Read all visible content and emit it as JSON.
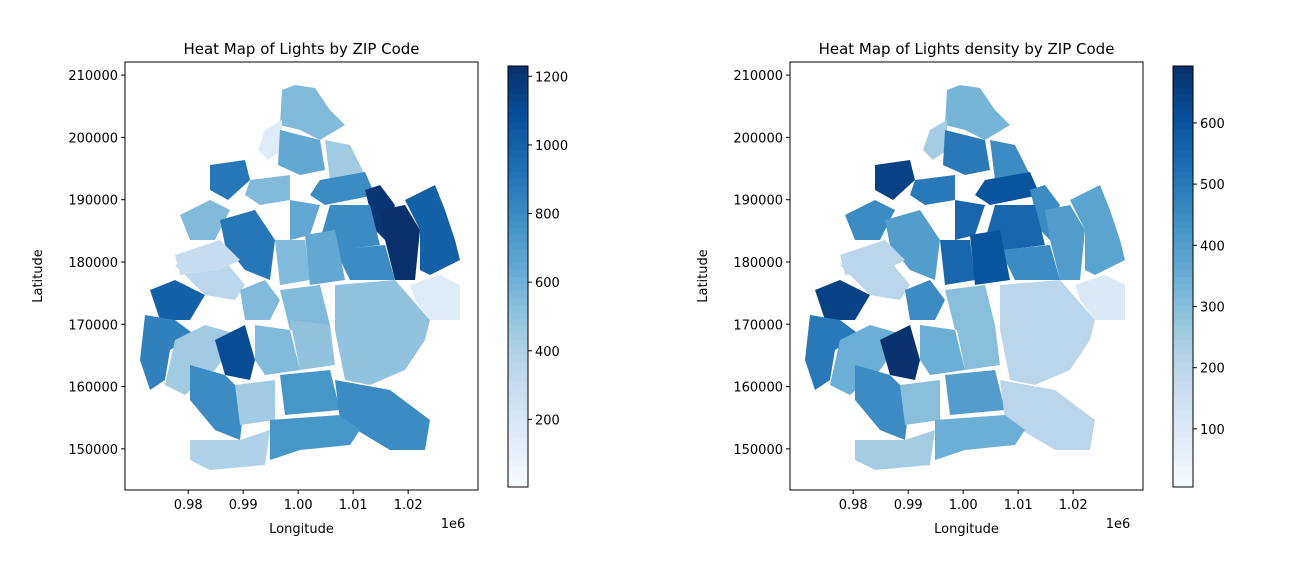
{
  "chart_data": [
    {
      "type": "choropleth",
      "title": "Heat Map of Lights by ZIP Code",
      "xlabel": "Longitude",
      "ylabel": "Latitude",
      "x_offset_label": "1e6",
      "xlim": [
        968500,
        1032700
      ],
      "ylim": [
        143400,
        212100
      ],
      "xticks": [
        {
          "value": 980000,
          "label": "0.98"
        },
        {
          "value": 990000,
          "label": "0.99"
        },
        {
          "value": 1000000,
          "label": "1.00"
        },
        {
          "value": 1010000,
          "label": "1.01"
        },
        {
          "value": 1020000,
          "label": "1.02"
        }
      ],
      "yticks": [
        150000,
        160000,
        170000,
        180000,
        190000,
        200000,
        210000
      ],
      "clim": [
        3,
        1230
      ],
      "cbar_ticks": [
        200,
        400,
        600,
        800,
        1000,
        1200
      ],
      "cmap": [
        "#f7fbff",
        "#deebf7",
        "#c6dbef",
        "#9ecae1",
        "#6baed6",
        "#4292c6",
        "#2171b5",
        "#08519c",
        "#08306b"
      ],
      "values": [
        550,
        150,
        650,
        450,
        800,
        1200,
        1230,
        1000,
        150,
        900,
        550,
        650,
        800,
        800,
        550,
        900,
        550,
        650,
        1000,
        350,
        550,
        550,
        500,
        850,
        450,
        1100,
        550,
        500,
        800,
        450,
        750,
        800,
        400,
        750,
        300
      ]
    },
    {
      "type": "choropleth",
      "title": "Heat Map of Lights density by ZIP Code",
      "xlabel": "Longitude",
      "ylabel": "Latitude",
      "x_offset_label": "1e6",
      "xlim": [
        968500,
        1032700
      ],
      "ylim": [
        143400,
        212100
      ],
      "xticks": [
        {
          "value": 980000,
          "label": "0.98"
        },
        {
          "value": 990000,
          "label": "0.99"
        },
        {
          "value": 1000000,
          "label": "1.00"
        },
        {
          "value": 1010000,
          "label": "1.01"
        },
        {
          "value": 1020000,
          "label": "1.02"
        }
      ],
      "yticks": [
        150000,
        160000,
        170000,
        180000,
        190000,
        200000,
        210000
      ],
      "clim": [
        5,
        693
      ],
      "cbar_ticks": [
        100,
        200,
        300,
        400,
        500,
        600
      ],
      "cmap": [
        "#f7fbff",
        "#deebf7",
        "#c6dbef",
        "#9ecae1",
        "#6baed6",
        "#4292c6",
        "#2171b5",
        "#08519c",
        "#08306b"
      ],
      "values": [
        330,
        250,
        500,
        450,
        600,
        450,
        400,
        380,
        100,
        650,
        500,
        550,
        550,
        450,
        450,
        400,
        550,
        600,
        650,
        200,
        450,
        300,
        200,
        500,
        350,
        690,
        350,
        300,
        450,
        300,
        400,
        200,
        250,
        350,
        200
      ]
    }
  ]
}
